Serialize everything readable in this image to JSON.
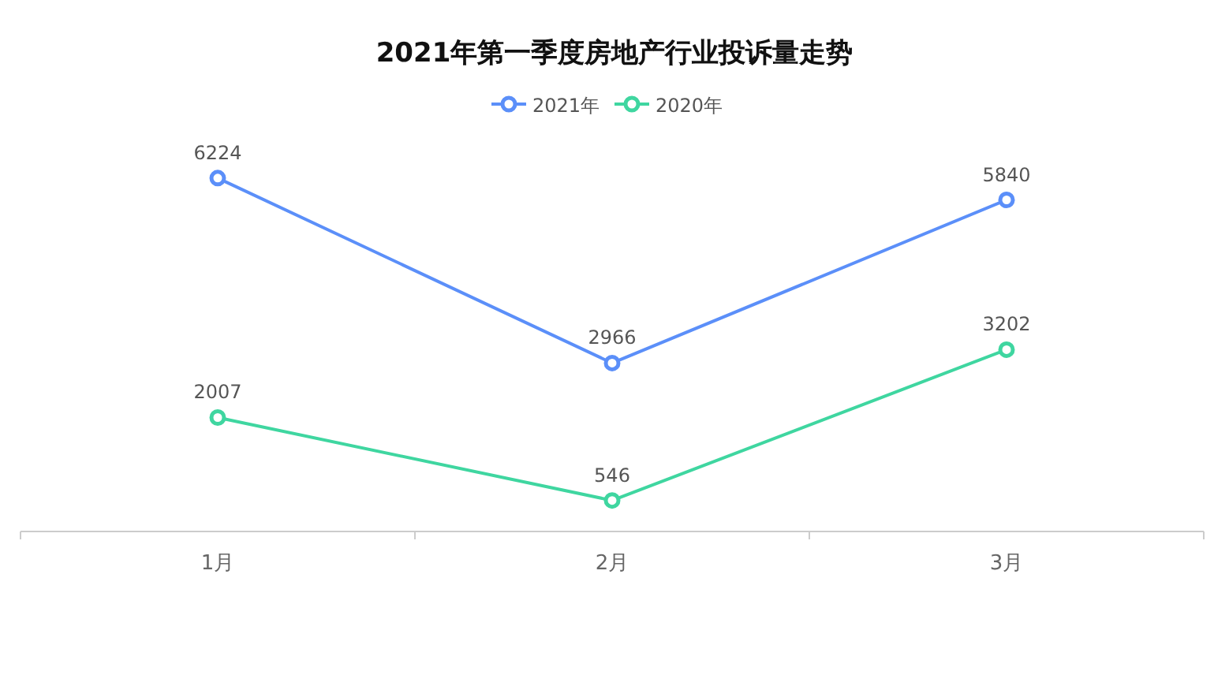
{
  "chart_data": {
    "type": "line",
    "title": "2021年第一季度房地产行业投诉量走势",
    "categories": [
      "1月",
      "2月",
      "3月"
    ],
    "series": [
      {
        "name": "2021年",
        "color": "#5b8ff9",
        "values": [
          6224,
          2966,
          5840
        ]
      },
      {
        "name": "2020年",
        "color": "#3fd6a0",
        "values": [
          2007,
          546,
          3202
        ]
      }
    ],
    "data_labels": true,
    "legend": "top",
    "marker": "circle"
  }
}
